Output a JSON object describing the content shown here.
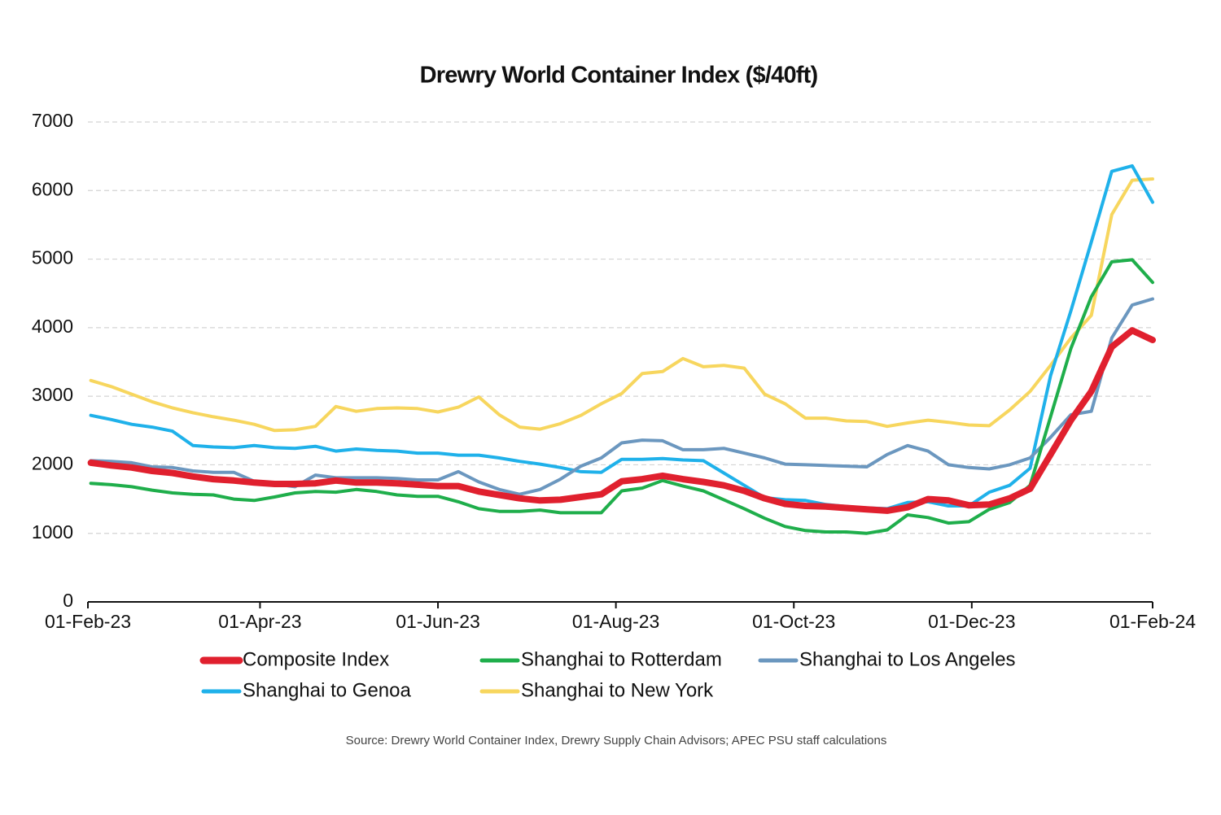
{
  "chart_data": {
    "type": "line",
    "title": "Drewry World Container Index ($/40ft)",
    "source": "Source: Drewry World Container Index, Drewry Supply Chain Advisors; APEC PSU staff calculations",
    "x": [
      "2023-02-02",
      "2023-02-09",
      "2023-02-16",
      "2023-02-23",
      "2023-03-02",
      "2023-03-09",
      "2023-03-16",
      "2023-03-23",
      "2023-03-30",
      "2023-04-06",
      "2023-04-13",
      "2023-04-20",
      "2023-04-27",
      "2023-05-04",
      "2023-05-11",
      "2023-05-18",
      "2023-05-25",
      "2023-06-01",
      "2023-06-08",
      "2023-06-15",
      "2023-06-22",
      "2023-06-29",
      "2023-07-06",
      "2023-07-13",
      "2023-07-20",
      "2023-07-27",
      "2023-08-03",
      "2023-08-10",
      "2023-08-17",
      "2023-08-24",
      "2023-08-31",
      "2023-09-07",
      "2023-09-14",
      "2023-09-21",
      "2023-09-28",
      "2023-10-05",
      "2023-10-12",
      "2023-10-19",
      "2023-10-26",
      "2023-11-02",
      "2023-11-09",
      "2023-11-16",
      "2023-11-23",
      "2023-11-30",
      "2023-12-07",
      "2023-12-14",
      "2023-12-21",
      "2023-12-28",
      "2024-01-04",
      "2024-01-11",
      "2024-01-18",
      "2024-01-25",
      "2024-02-01"
    ],
    "xlim": [
      "2023-02-01",
      "2024-02-01"
    ],
    "xticks": [
      {
        "value": "2023-02-01",
        "label": "01-Feb-23"
      },
      {
        "value": "2023-04-01",
        "label": "01-Apr-23"
      },
      {
        "value": "2023-06-01",
        "label": "01-Jun-23"
      },
      {
        "value": "2023-08-01",
        "label": "01-Aug-23"
      },
      {
        "value": "2023-10-01",
        "label": "01-Oct-23"
      },
      {
        "value": "2023-12-01",
        "label": "01-Dec-23"
      },
      {
        "value": "2024-02-01",
        "label": "01-Feb-24"
      }
    ],
    "ylim": [
      0,
      7000
    ],
    "yticks": [
      0,
      1000,
      2000,
      3000,
      4000,
      5000,
      6000,
      7000
    ],
    "grid": true,
    "legend": "bottom",
    "series": [
      {
        "name": "Composite Index",
        "color": "#e0202e",
        "width": 8,
        "values": [
          2030,
          1990,
          1960,
          1910,
          1880,
          1830,
          1790,
          1770,
          1740,
          1720,
          1720,
          1730,
          1770,
          1740,
          1740,
          1730,
          1710,
          1690,
          1690,
          1610,
          1560,
          1510,
          1480,
          1490,
          1530,
          1570,
          1760,
          1790,
          1840,
          1790,
          1750,
          1700,
          1620,
          1510,
          1430,
          1400,
          1390,
          1370,
          1350,
          1330,
          1380,
          1500,
          1480,
          1410,
          1420,
          1510,
          1650,
          2150,
          2650,
          3070,
          3720,
          3960,
          3820
        ]
      },
      {
        "name": "Shanghai to Rotterdam",
        "color": "#1fae4b",
        "width": 4,
        "values": [
          1730,
          1710,
          1680,
          1630,
          1590,
          1570,
          1560,
          1500,
          1480,
          1530,
          1590,
          1610,
          1600,
          1640,
          1610,
          1560,
          1540,
          1540,
          1460,
          1360,
          1320,
          1320,
          1340,
          1300,
          1300,
          1300,
          1620,
          1660,
          1770,
          1690,
          1620,
          1490,
          1360,
          1220,
          1100,
          1040,
          1020,
          1020,
          1000,
          1050,
          1270,
          1230,
          1150,
          1170,
          1350,
          1450,
          1700,
          2700,
          3700,
          4450,
          4960,
          4990,
          4660
        ]
      },
      {
        "name": "Shanghai to Los Angeles",
        "color": "#6b97bf",
        "width": 4,
        "values": [
          2060,
          2050,
          2030,
          1970,
          1960,
          1910,
          1890,
          1890,
          1760,
          1720,
          1680,
          1850,
          1810,
          1810,
          1810,
          1800,
          1780,
          1780,
          1900,
          1750,
          1640,
          1570,
          1640,
          1790,
          1980,
          2100,
          2320,
          2360,
          2350,
          2220,
          2220,
          2240,
          2170,
          2100,
          2010,
          2000,
          1990,
          1980,
          1970,
          2150,
          2280,
          2200,
          2000,
          1960,
          1940,
          2000,
          2100,
          2400,
          2730,
          2780,
          3850,
          4330,
          4420
        ]
      },
      {
        "name": "Shanghai to Genoa",
        "color": "#1fb1ea",
        "width": 4,
        "values": [
          2720,
          2660,
          2590,
          2550,
          2490,
          2280,
          2260,
          2250,
          2280,
          2250,
          2240,
          2270,
          2200,
          2230,
          2210,
          2200,
          2170,
          2170,
          2140,
          2140,
          2100,
          2050,
          2010,
          1960,
          1900,
          1890,
          2080,
          2080,
          2090,
          2070,
          2060,
          1880,
          1700,
          1520,
          1490,
          1480,
          1420,
          1390,
          1370,
          1360,
          1450,
          1460,
          1400,
          1400,
          1600,
          1700,
          1950,
          3300,
          4250,
          5250,
          6280,
          6360,
          5830
        ]
      },
      {
        "name": "Shanghai to New York",
        "color": "#f7d65e",
        "width": 4,
        "values": [
          3230,
          3140,
          3030,
          2920,
          2830,
          2760,
          2700,
          2650,
          2590,
          2500,
          2510,
          2560,
          2850,
          2780,
          2820,
          2830,
          2820,
          2770,
          2840,
          2990,
          2730,
          2550,
          2520,
          2600,
          2720,
          2890,
          3040,
          3330,
          3360,
          3550,
          3430,
          3450,
          3410,
          3030,
          2890,
          2680,
          2680,
          2640,
          2630,
          2560,
          2610,
          2650,
          2620,
          2580,
          2570,
          2800,
          3070,
          3450,
          3850,
          4180,
          5650,
          6150,
          6170
        ]
      }
    ]
  }
}
